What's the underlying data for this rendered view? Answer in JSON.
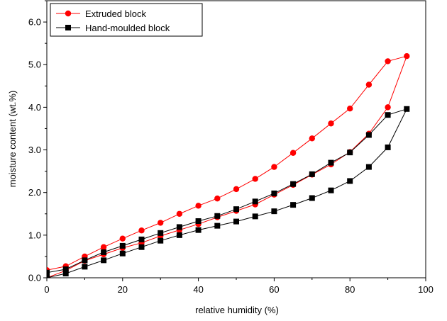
{
  "chart_data": {
    "type": "line",
    "title": "",
    "xlabel": "relative humidity (%)",
    "ylabel": "moisture content (wt.%)",
    "xlim": [
      0,
      100
    ],
    "ylim": [
      0,
      6.5
    ],
    "x_ticks": [
      "0",
      "20",
      "40",
      "60",
      "80",
      "100"
    ],
    "y_ticks": [
      "0.0",
      "1.0",
      "2.0",
      "3.0",
      "4.0",
      "5.0",
      "6.0"
    ],
    "legend_position": "top-left",
    "grid": false,
    "series": [
      {
        "name": "Extruded block",
        "color": "#ff0000",
        "marker": "circle",
        "x": [
          0,
          5,
          10,
          15,
          20,
          25,
          30,
          35,
          40,
          45,
          50,
          55,
          60,
          65,
          70,
          75,
          80,
          85,
          90,
          95,
          90,
          85,
          80,
          75,
          70,
          65,
          60,
          55,
          50,
          45,
          40,
          35,
          30,
          25,
          20,
          15,
          10,
          5,
          0
        ],
        "y": [
          0.0,
          0.17,
          0.4,
          0.55,
          0.7,
          0.82,
          0.98,
          1.12,
          1.26,
          1.42,
          1.57,
          1.72,
          1.95,
          2.18,
          2.42,
          2.66,
          2.95,
          3.38,
          4.0,
          5.2,
          5.08,
          4.53,
          3.97,
          3.62,
          3.27,
          2.93,
          2.6,
          2.32,
          2.08,
          1.86,
          1.69,
          1.5,
          1.29,
          1.11,
          0.92,
          0.72,
          0.5,
          0.27,
          0.18
        ]
      },
      {
        "name": "Hand-moulded block",
        "color": "#000000",
        "marker": "square",
        "x": [
          0,
          5,
          10,
          15,
          20,
          25,
          30,
          35,
          40,
          45,
          50,
          55,
          60,
          65,
          70,
          75,
          80,
          85,
          90,
          95,
          90,
          85,
          80,
          75,
          70,
          65,
          60,
          55,
          50,
          45,
          40,
          35,
          30,
          25,
          20,
          15,
          10,
          5,
          0
        ],
        "y": [
          0.0,
          0.1,
          0.26,
          0.41,
          0.57,
          0.72,
          0.87,
          1.0,
          1.12,
          1.22,
          1.32,
          1.44,
          1.56,
          1.71,
          1.87,
          2.05,
          2.27,
          2.6,
          3.06,
          3.96,
          3.82,
          3.35,
          2.94,
          2.7,
          2.43,
          2.2,
          1.98,
          1.79,
          1.61,
          1.45,
          1.33,
          1.19,
          1.05,
          0.9,
          0.75,
          0.6,
          0.41,
          0.2,
          0.12
        ]
      }
    ]
  }
}
